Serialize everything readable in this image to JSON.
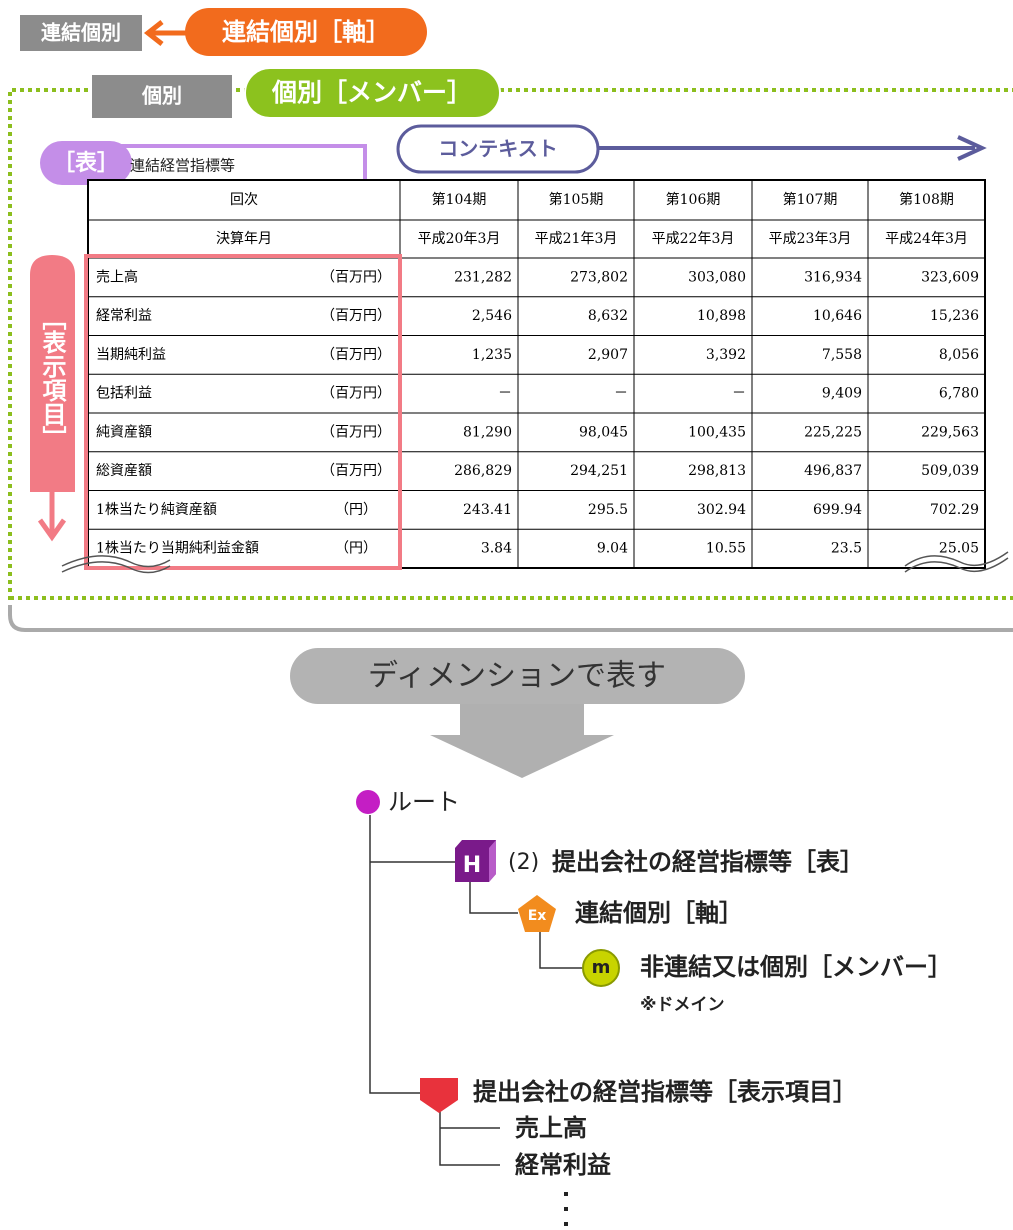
{
  "labels": {
    "axis_plain": "連結個別",
    "axis": "連結個別［軸］",
    "member_plain": "個別",
    "member": "個別［メンバー］",
    "context": "コンテキスト",
    "table_tag": "［表］",
    "table_name": "連結経営指標等",
    "items_tag": "［表示項目］",
    "transform": "ディメンションで表す"
  },
  "table": {
    "header": [
      [
        "回次",
        "第104期",
        "第105期",
        "第106期",
        "第107期",
        "第108期"
      ],
      [
        "決算年月",
        "平成20年3月",
        "平成21年3月",
        "平成22年3月",
        "平成23年3月",
        "平成24年3月"
      ]
    ],
    "rows": [
      [
        "売上高",
        "（百万円）",
        "231,282",
        "273,802",
        "303,080",
        "316,934",
        "323,609"
      ],
      [
        "経常利益",
        "（百万円）",
        "2,546",
        "8,632",
        "10,898",
        "10,646",
        "15,236"
      ],
      [
        "当期純利益",
        "（百万円）",
        "1,235",
        "2,907",
        "3,392",
        "7,558",
        "8,056"
      ],
      [
        "包括利益",
        "（百万円）",
        "－",
        "－",
        "－",
        "9,409",
        "6,780"
      ],
      [
        "純資産額",
        "（百万円）",
        "81,290",
        "98,045",
        "100,435",
        "225,225",
        "229,563"
      ],
      [
        "総資産額",
        "（百万円）",
        "286,829",
        "294,251",
        "298,813",
        "496,837",
        "509,039"
      ],
      [
        "1株当たり純資産額",
        "（円）",
        "243.41",
        "295.5",
        "302.94",
        "699.94",
        "702.29"
      ],
      [
        "1株当たり当期純利益金額",
        "（円）",
        "3.84",
        "9.04",
        "10.55",
        "23.5",
        "25.05"
      ]
    ]
  },
  "tree": {
    "root": "ルート",
    "table_node": {
      "icon": "H",
      "number": "(2)",
      "label": "提出会社の経営指標等［表］"
    },
    "axis_node": {
      "icon": "Ex",
      "label": "連結個別［軸］"
    },
    "member_node": {
      "icon": "m",
      "label": "非連結又は個別［メンバー］",
      "note": "※ドメイン"
    },
    "items_node": {
      "label": "提出会社の経営指標等［表示項目］"
    },
    "items": [
      "売上高",
      "経常利益"
    ]
  }
}
